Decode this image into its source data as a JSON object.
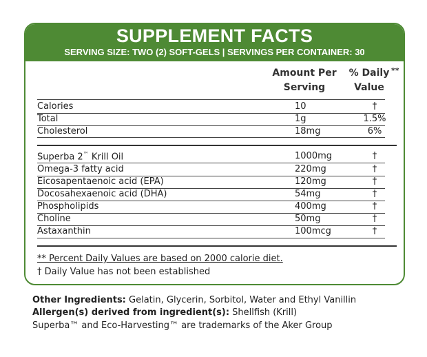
{
  "header": {
    "title": "SUPPLEMENT FACTS",
    "serving": "SERVING SIZE: TWO (2) SOFT-GELS | SERVINGS PER CONTAINER: 30"
  },
  "columns": {
    "amount_line1": "Amount Per",
    "amount_line2": "Serving",
    "dv_line1": "% Daily",
    "dv_line2": "Value",
    "dv_mark": "**"
  },
  "group1": [
    {
      "name": "Calories",
      "amount": "10",
      "dv": "†"
    },
    {
      "name": "Total",
      "amount": "1g",
      "dv": "1.5%"
    },
    {
      "name": "Cholesterol",
      "amount": "18mg",
      "dv": "6%"
    }
  ],
  "group2": [
    {
      "name": "Superba 2",
      "tm": "™",
      "name_suffix": " Krill Oil",
      "amount": "1000mg",
      "dv": "†"
    },
    {
      "name": "Omega-3 fatty acid",
      "amount": "220mg",
      "dv": "†"
    },
    {
      "name": "Eicosapentaenoic acid (EPA)",
      "amount": "120mg",
      "dv": "†"
    },
    {
      "name": "Docosahexaenoic acid (DHA)",
      "amount": "54mg",
      "dv": "†"
    },
    {
      "name": "Phospholipids",
      "amount": "400mg",
      "dv": "†"
    },
    {
      "name": "Choline",
      "amount": "50mg",
      "dv": "†"
    },
    {
      "name": "Astaxanthin",
      "amount": "100mcg",
      "dv": "†"
    }
  ],
  "footnotes": {
    "daily_values": "** Percent Daily Values are based on 2000 calorie diet.",
    "not_established": "† Daily Value has not been established"
  },
  "other": {
    "ingredients_label": "Other Ingredients:",
    "ingredients_value": " Gelatin, Glycerin, Sorbitol, Water and Ethyl Vanillin",
    "allergen_label": "Allergen(s) derived from ingredient(s):",
    "allergen_value": " Shellfish (Krill)",
    "trademark": "Superba™ and Eco-Harvesting™ are trademarks of the Aker Group"
  },
  "colors": {
    "brand_green": "#4e8a34"
  }
}
